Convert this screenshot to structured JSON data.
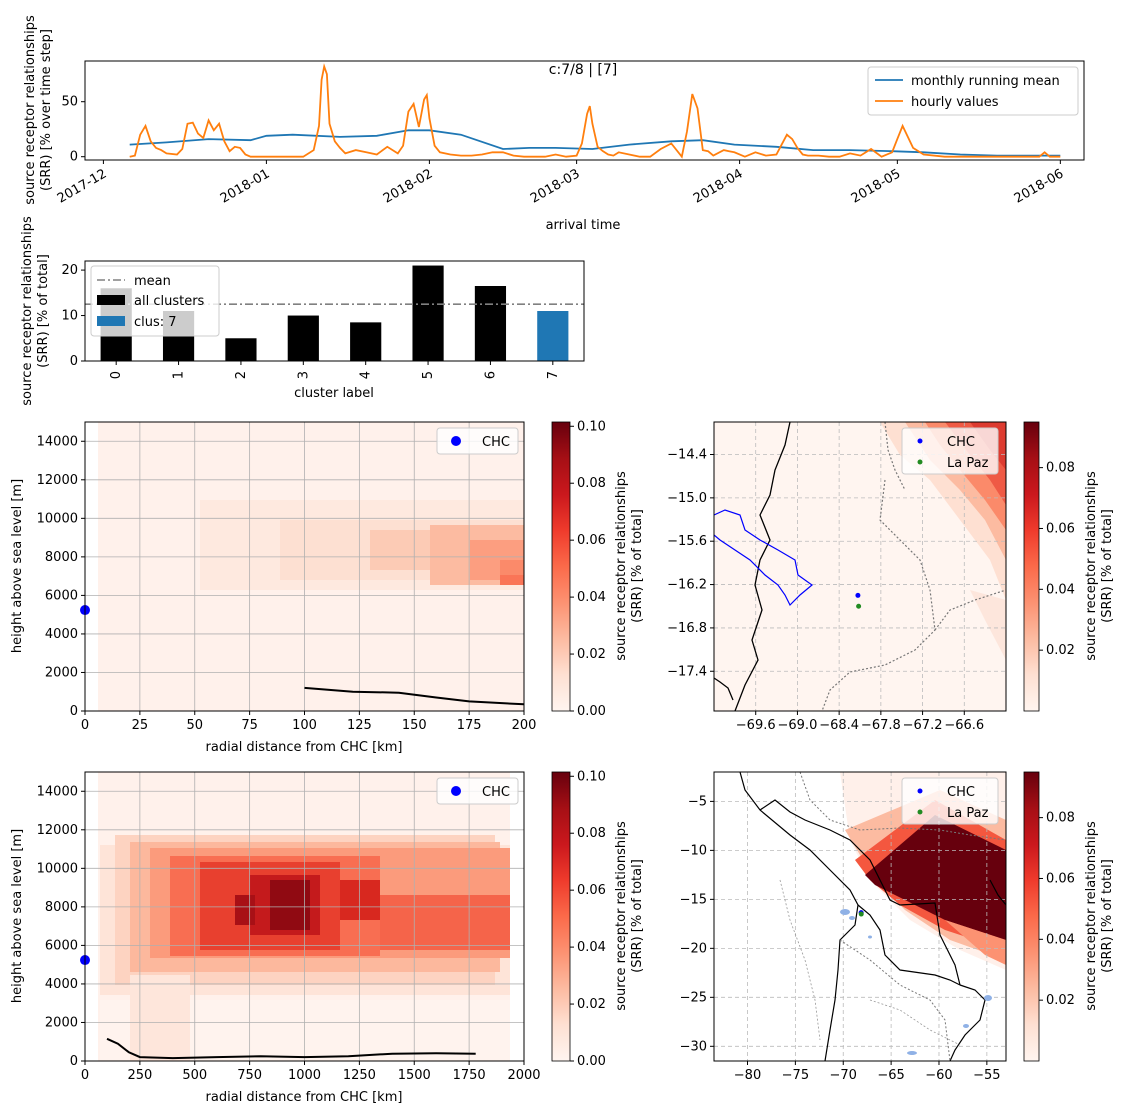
{
  "figure": {
    "title": "c:7/8 | [7]"
  },
  "chart_data": [
    {
      "id": "timeseries",
      "type": "line",
      "xlabel": "arrival time",
      "ylabel": [
        "source receptor relationships",
        "(SRR) [% over time step]"
      ],
      "x_ticks": [
        "2017-12",
        "2018-01",
        "2018-02",
        "2018-03",
        "2018-04",
        "2018-05",
        "2018-06"
      ],
      "x_tick_days": [
        0,
        31,
        62,
        90,
        121,
        151,
        182
      ],
      "xlim_days": [
        -3.5,
        186.5
      ],
      "ylim": [
        -3,
        87
      ],
      "y_ticks": [
        0,
        50
      ],
      "legend_position": "upper right",
      "series": [
        {
          "name": "monthly running mean",
          "color": "#1f77b4",
          "x_days": [
            5,
            12,
            20,
            28,
            31,
            36,
            45,
            52,
            58,
            62,
            68,
            76,
            81,
            86,
            93,
            100,
            108,
            114,
            120,
            128,
            135,
            142,
            150,
            156,
            163,
            170,
            178,
            182
          ],
          "values": [
            11,
            13,
            16,
            15,
            19,
            20,
            18,
            19,
            24,
            24,
            20,
            7,
            8,
            8,
            7,
            11,
            14,
            15,
            11,
            9,
            6,
            6,
            5,
            4,
            2,
            1,
            1,
            1
          ]
        },
        {
          "name": "hourly values",
          "color": "#ff7f0e",
          "x_days": [
            5,
            6,
            7,
            8,
            9,
            10,
            11,
            12,
            14,
            15,
            16,
            17,
            18,
            19,
            20,
            21,
            22,
            23,
            24,
            25,
            26,
            27,
            28,
            30,
            32,
            34,
            36,
            38,
            40,
            41,
            41.5,
            42,
            42.5,
            43,
            44,
            45,
            46,
            48,
            50,
            52,
            54,
            56,
            57,
            58,
            59,
            60,
            61,
            61.5,
            62,
            63,
            64,
            66,
            68,
            70,
            72,
            74,
            76,
            78,
            80,
            82,
            84,
            86,
            88,
            90,
            91,
            92,
            92.5,
            93,
            94,
            95,
            96,
            97,
            98,
            100,
            102,
            104,
            106,
            108,
            110,
            111,
            112,
            113,
            114,
            115,
            116,
            118,
            119,
            120,
            122,
            124,
            126,
            128,
            130,
            131,
            132,
            133,
            134,
            136,
            138,
            140,
            142,
            144,
            146,
            148,
            150,
            151,
            152,
            154,
            156,
            160,
            164,
            168,
            172,
            176,
            178,
            179,
            180,
            182
          ],
          "values": [
            0,
            1,
            20,
            28,
            14,
            8,
            6,
            3,
            2,
            7,
            30,
            31,
            21,
            17,
            33,
            24,
            30,
            14,
            5,
            9,
            8,
            2,
            0,
            0,
            0,
            0,
            0,
            0,
            6,
            28,
            70,
            82,
            75,
            30,
            14,
            8,
            3,
            6,
            4,
            2,
            9,
            3,
            10,
            41,
            48,
            27,
            52,
            56,
            35,
            10,
            4,
            2,
            1,
            1,
            2,
            4,
            4,
            1,
            0,
            0,
            0,
            2,
            0,
            1,
            12,
            39,
            46,
            30,
            9,
            5,
            2,
            1,
            4,
            2,
            0,
            0,
            7,
            12,
            0,
            23,
            57,
            44,
            6,
            5,
            1,
            6,
            5,
            4,
            0,
            4,
            1,
            2,
            20,
            16,
            8,
            2,
            1,
            1,
            0,
            0,
            3,
            1,
            7,
            0,
            4,
            16,
            28,
            8,
            2,
            0,
            0,
            0,
            0,
            0,
            0,
            4,
            0,
            0
          ]
        }
      ]
    },
    {
      "id": "cluster-bars",
      "type": "bar",
      "xlabel": "cluster label",
      "ylabel": [
        "source receptor relationships",
        "(SRR) [% of total]"
      ],
      "categories": [
        "0",
        "1",
        "2",
        "3",
        "4",
        "5",
        "6",
        "7"
      ],
      "values": [
        16,
        11,
        5,
        10,
        8.5,
        21,
        16.5,
        11
      ],
      "ylim": [
        0,
        22
      ],
      "y_ticks": [
        0,
        10,
        20
      ],
      "mean": 12.5,
      "highlight_category": "7",
      "legend": [
        "mean",
        "all clusters",
        "clus: 7"
      ],
      "legend_position": "upper left",
      "colors": {
        "bars": "#000000",
        "highlight": "#1f77b4",
        "mean": "#808080"
      }
    },
    {
      "id": "height-profile-near",
      "type": "heatmap",
      "xlabel": "radial distance from CHC [km]",
      "ylabel": "height above sea level [m]",
      "xlim": [
        0,
        200
      ],
      "ylim": [
        0,
        15000
      ],
      "x_ticks": [
        0,
        25,
        50,
        75,
        100,
        125,
        150,
        175,
        200
      ],
      "y_ticks": [
        0,
        2000,
        4000,
        6000,
        8000,
        10000,
        12000,
        14000
      ],
      "colorbar": {
        "label": [
          "source receptor relationships",
          "(SRR) [% of total]"
        ],
        "min": 0,
        "max": 0.1015,
        "ticks": [
          0,
          0.02,
          0.04,
          0.06,
          0.08,
          0.1
        ]
      },
      "station": {
        "name": "CHC",
        "distance_km": 0,
        "height_m": 5240
      },
      "terrain": {
        "distance_km": [
          100,
          122,
          143,
          160,
          175,
          200
        ],
        "height_m": [
          1200,
          1000,
          950,
          700,
          500,
          350
        ]
      },
      "legend": [
        "CHC"
      ]
    },
    {
      "id": "map-near",
      "type": "heatmap",
      "lon_ticks": [
        -69.6,
        -69.0,
        -68.4,
        -67.8,
        -67.2,
        -66.6
      ],
      "lat_ticks": [
        -14.4,
        -15.0,
        -15.6,
        -16.2,
        -16.8,
        -17.4
      ],
      "lon_range": [
        -70.2,
        -66.0
      ],
      "lat_range": [
        -17.95,
        -13.95
      ],
      "colorbar": {
        "label": [
          "source receptor relationships",
          "(SRR) [% of total]"
        ],
        "min": 0,
        "max": 0.095,
        "ticks": [
          0.02,
          0.04,
          0.06,
          0.08
        ]
      },
      "points": [
        {
          "name": "CHC",
          "lon": -68.13,
          "lat": -16.35,
          "color": "#0000ff"
        },
        {
          "name": "La Paz",
          "lon": -68.12,
          "lat": -16.5,
          "color": "#228b22"
        }
      ],
      "legend": [
        "CHC",
        "La Paz"
      ]
    },
    {
      "id": "height-profile-far",
      "type": "heatmap",
      "xlabel": "radial distance from CHC [km]",
      "ylabel": "height above sea level [m]",
      "xlim": [
        0,
        2000
      ],
      "ylim": [
        0,
        15000
      ],
      "x_ticks": [
        0,
        250,
        500,
        750,
        1000,
        1250,
        1500,
        1750,
        2000
      ],
      "y_ticks": [
        0,
        2000,
        4000,
        6000,
        8000,
        10000,
        12000,
        14000
      ],
      "colorbar": {
        "label": [
          "source receptor relationships",
          "(SRR) [% of total]"
        ],
        "min": 0,
        "max": 0.1015,
        "ticks": [
          0,
          0.02,
          0.04,
          0.06,
          0.08,
          0.1
        ]
      },
      "station": {
        "name": "CHC",
        "distance_km": 0,
        "height_m": 5240
      },
      "terrain": {
        "distance_km": [
          100,
          150,
          200,
          250,
          400,
          600,
          800,
          1000,
          1200,
          1400,
          1600,
          1780
        ],
        "height_m": [
          1150,
          900,
          450,
          200,
          150,
          200,
          250,
          200,
          250,
          380,
          400,
          380
        ]
      },
      "legend": [
        "CHC"
      ]
    },
    {
      "id": "map-far",
      "type": "heatmap",
      "lon_ticks": [
        -80,
        -75,
        -70,
        -65,
        -60,
        -55
      ],
      "lat_ticks": [
        -5,
        -10,
        -15,
        -20,
        -25,
        -30
      ],
      "lon_range": [
        -83.5,
        -53
      ],
      "lat_range": [
        -31.5,
        -2
      ],
      "colorbar": {
        "label": [
          "source receptor relationships",
          "(SRR) [% of total]"
        ],
        "min": 0,
        "max": 0.095,
        "ticks": [
          0.02,
          0.04,
          0.06,
          0.08
        ]
      },
      "points": [
        {
          "name": "CHC",
          "lon": -68.13,
          "lat": -16.35,
          "color": "#0000ff"
        },
        {
          "name": "La Paz",
          "lon": -68.12,
          "lat": -16.5,
          "color": "#228b22"
        }
      ],
      "legend": [
        "CHC",
        "La Paz"
      ]
    }
  ]
}
